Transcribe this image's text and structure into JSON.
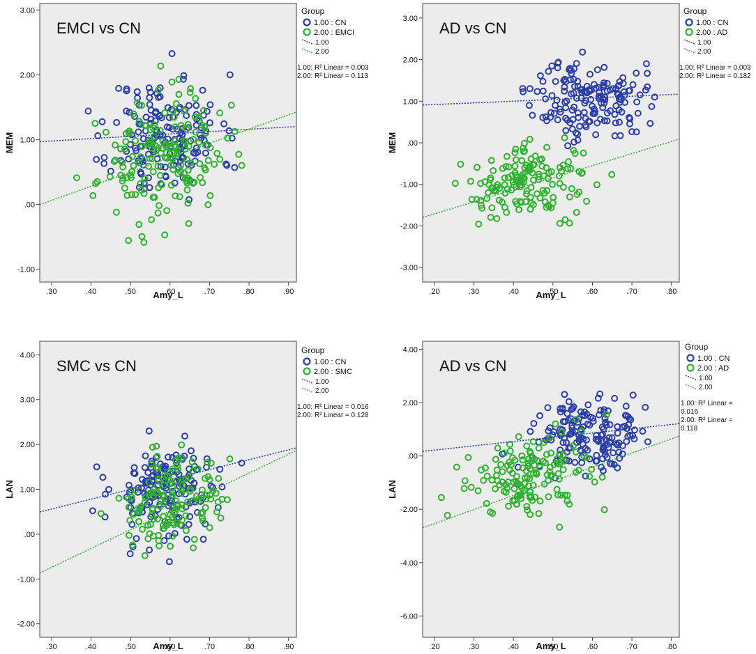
{
  "colors": {
    "cn": "#2b3ea8",
    "green": "#2fb12f",
    "plot_bg": "#ececec",
    "frame": "#444444",
    "text": "#111111"
  },
  "chart_data": [
    {
      "type": "scatter",
      "title": "EMCI vs CN",
      "xlabel": "Amy_L",
      "ylabel": "MEM",
      "xlim": [
        0.27,
        0.92
      ],
      "ylim": [
        -1.2,
        3.1
      ],
      "xticks": [
        0.3,
        0.4,
        0.5,
        0.6,
        0.7,
        0.8,
        0.9
      ],
      "xtick_labels": [
        ".30",
        ".40",
        ".50",
        ".60",
        ".70",
        ".80",
        ".90"
      ],
      "yticks": [
        3,
        2,
        1,
        0,
        -1
      ],
      "ytick_labels": [
        "3.00",
        "2.00",
        "1.00",
        ".00",
        "-1.00"
      ],
      "legend": {
        "title": "Group",
        "items": [
          {
            "kind": "marker",
            "label": "1.00 : CN",
            "color": "cn"
          },
          {
            "kind": "marker",
            "label": "2.00 : EMCI",
            "color": "green"
          },
          {
            "kind": "line",
            "label": "1.00",
            "color": "cn"
          },
          {
            "kind": "line",
            "label": "2.00",
            "color": "green"
          }
        ],
        "r2_lines": [
          "1.00: R² Linear = 0.003",
          "2.00: R² Linear = 0.113"
        ]
      },
      "series": [
        {
          "name": "1.00 : CN",
          "color": "cn",
          "fit": {
            "intercept": 0.87,
            "slope": 0.36
          },
          "n": 165,
          "x_mean": 0.59,
          "x_sd": 0.07,
          "y_mean": 1.05,
          "y_sd": 0.55,
          "seed": 11
        },
        {
          "name": "2.00 : EMCI",
          "color": "green",
          "fit": {
            "intercept": -0.6,
            "slope": 2.2
          },
          "n": 170,
          "x_mean": 0.58,
          "x_sd": 0.08,
          "y_mean": 0.7,
          "y_sd": 0.55,
          "seed": 23
        }
      ]
    },
    {
      "type": "scatter",
      "title": "AD vs CN",
      "xlabel": "Amy_L",
      "ylabel": "MEM",
      "xlim": [
        0.17,
        0.82
      ],
      "ylim": [
        -3.35,
        3.35
      ],
      "xticks": [
        0.2,
        0.3,
        0.4,
        0.5,
        0.6,
        0.7,
        0.8
      ],
      "xtick_labels": [
        ".20",
        ".30",
        ".40",
        ".50",
        ".60",
        ".70",
        ".80"
      ],
      "yticks": [
        3,
        2,
        1,
        0,
        -1,
        -2,
        -3
      ],
      "ytick_labels": [
        "3.00",
        "2.00",
        "1.00",
        ".00",
        "-1.00",
        "-2.00",
        "-3.00"
      ],
      "legend": {
        "title": "Group",
        "items": [
          {
            "kind": "marker",
            "label": "1.00 : CN",
            "color": "cn"
          },
          {
            "kind": "marker",
            "label": "2.00 : AD",
            "color": "green"
          },
          {
            "kind": "line",
            "label": "1.00",
            "color": "cn"
          },
          {
            "kind": "line",
            "label": "2.00",
            "color": "green"
          }
        ],
        "r2_lines": [
          "1.00: R² Linear = 0.003",
          "2.00: R² Linear = 0.182"
        ]
      },
      "series": [
        {
          "name": "1.00 : CN",
          "color": "cn",
          "fit": {
            "intercept": 0.84,
            "slope": 0.4
          },
          "n": 165,
          "x_mean": 0.59,
          "x_sd": 0.07,
          "y_mean": 1.05,
          "y_sd": 0.55,
          "seed": 37
        },
        {
          "name": "2.00 : AD",
          "color": "green",
          "fit": {
            "intercept": -2.29,
            "slope": 2.9
          },
          "n": 150,
          "x_mean": 0.44,
          "x_sd": 0.08,
          "y_mean": -0.95,
          "y_sd": 0.5,
          "seed": 41
        }
      ]
    },
    {
      "type": "scatter",
      "title": "SMC vs CN",
      "xlabel": "Amy_L",
      "ylabel": "LAN",
      "xlim": [
        0.27,
        0.92
      ],
      "ylim": [
        -2.3,
        4.3
      ],
      "xticks": [
        0.3,
        0.4,
        0.5,
        0.6,
        0.7,
        0.8,
        0.9
      ],
      "xtick_labels": [
        ".30",
        ".40",
        ".50",
        ".60",
        ".70",
        ".80",
        ".90"
      ],
      "yticks": [
        4,
        3,
        2,
        1,
        0,
        -1,
        -2
      ],
      "ytick_labels": [
        "4.00",
        "3.00",
        "2.00",
        "1.00",
        ".00",
        "-1.00",
        "-2.00"
      ],
      "legend": {
        "title": "Group",
        "items": [
          {
            "kind": "marker",
            "label": "1.00 : CN",
            "color": "cn"
          },
          {
            "kind": "marker",
            "label": "2.00 : SMC",
            "color": "green"
          },
          {
            "kind": "line",
            "label": "1.00",
            "color": "cn"
          },
          {
            "kind": "line",
            "label": "2.00",
            "color": "green"
          }
        ],
        "r2_lines": [
          "1.00: R² Linear = 0.016",
          "2.00: R² Linear = 0.128"
        ]
      },
      "series": [
        {
          "name": "1.00 : CN",
          "color": "cn",
          "fit": {
            "intercept": -0.1,
            "slope": 2.2
          },
          "n": 165,
          "x_mean": 0.59,
          "x_sd": 0.07,
          "y_mean": 0.95,
          "y_sd": 0.65,
          "seed": 53
        },
        {
          "name": "2.00 : SMC",
          "color": "green",
          "fit": {
            "intercept": -2.0,
            "slope": 4.2
          },
          "n": 140,
          "x_mean": 0.6,
          "x_sd": 0.06,
          "y_mean": 0.65,
          "y_sd": 0.6,
          "seed": 67
        }
      ]
    },
    {
      "type": "scatter",
      "title": "AD vs CN",
      "xlabel": "Amy_L",
      "ylabel": "LAN",
      "xlim": [
        0.17,
        0.82
      ],
      "ylim": [
        -6.8,
        4.3
      ],
      "xticks": [
        0.2,
        0.3,
        0.4,
        0.5,
        0.6,
        0.7,
        0.8
      ],
      "xtick_labels": [
        ".20",
        ".30",
        ".40",
        ".50",
        ".60",
        ".70",
        ".80"
      ],
      "yticks": [
        4,
        2,
        0,
        -2,
        -4,
        -6
      ],
      "ytick_labels": [
        "4.00",
        "2.00",
        ".00",
        "-2.00",
        "-4.00",
        "-6.00"
      ],
      "legend": {
        "title": "Group",
        "items": [
          {
            "kind": "marker",
            "label": "1.00 : CN",
            "color": "cn"
          },
          {
            "kind": "marker",
            "label": "2.00 : AD",
            "color": "green"
          },
          {
            "kind": "line",
            "label": "1.00",
            "color": "cn"
          },
          {
            "kind": "line",
            "label": "2.00",
            "color": "green"
          }
        ],
        "r2_lines": [
          "1.00: R² Linear =",
          "0.016",
          "2.00: R² Linear =",
          "0.118"
        ]
      },
      "series": [
        {
          "name": "1.00 : CN",
          "color": "cn",
          "fit": {
            "intercept": -0.1,
            "slope": 1.6
          },
          "n": 165,
          "x_mean": 0.59,
          "x_sd": 0.07,
          "y_mean": 0.9,
          "y_sd": 0.8,
          "seed": 79
        },
        {
          "name": "2.00 : AD",
          "color": "green",
          "fit": {
            "intercept": -3.6,
            "slope": 5.3
          },
          "n": 150,
          "x_mean": 0.44,
          "x_sd": 0.08,
          "y_mean": -0.75,
          "y_sd": 0.9,
          "seed": 83
        }
      ]
    }
  ]
}
